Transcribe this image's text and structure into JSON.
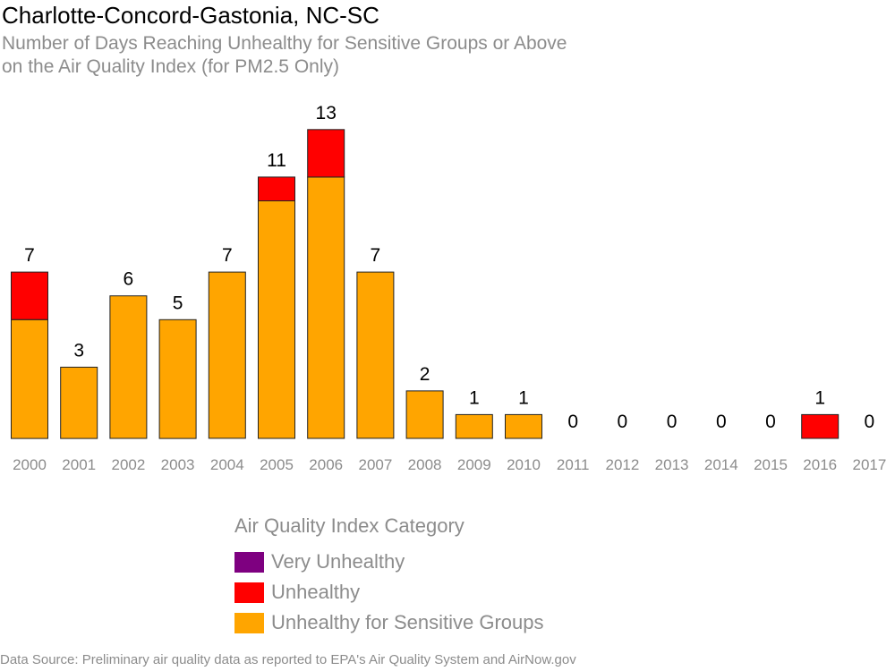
{
  "title": "Charlotte-Concord-Gastonia, NC-SC",
  "subtitle_line1": "Number of Days Reaching Unhealthy for Sensitive Groups or Above",
  "subtitle_line2": "on the Air Quality Index (for PM2.5 Only)",
  "legend": {
    "title": "Air Quality Index Category",
    "items": [
      {
        "label": "Very Unhealthy",
        "color": "#7e0080"
      },
      {
        "label": "Unhealthy",
        "color": "#ff0000"
      },
      {
        "label": "Unhealthy for Sensitive Groups",
        "color": "#ffa500"
      }
    ]
  },
  "source": "Data Source: Preliminary air quality data as reported to EPA's Air Quality System and AirNow.gov",
  "chart_data": {
    "type": "bar",
    "stacked": true,
    "categories": [
      "2000",
      "2001",
      "2002",
      "2003",
      "2004",
      "2005",
      "2006",
      "2007",
      "2008",
      "2009",
      "2010",
      "2011",
      "2012",
      "2013",
      "2014",
      "2015",
      "2016",
      "2017"
    ],
    "series": [
      {
        "name": "Unhealthy for Sensitive Groups",
        "color": "#ffa500",
        "values": [
          5,
          3,
          6,
          5,
          7,
          10,
          11,
          7,
          2,
          1,
          1,
          0,
          0,
          0,
          0,
          0,
          0,
          0
        ]
      },
      {
        "name": "Unhealthy",
        "color": "#ff0000",
        "values": [
          2,
          0,
          0,
          0,
          0,
          1,
          2,
          0,
          0,
          0,
          0,
          0,
          0,
          0,
          0,
          0,
          1,
          0
        ]
      },
      {
        "name": "Very Unhealthy",
        "color": "#7e0080",
        "values": [
          0,
          0,
          0,
          0,
          0,
          0,
          0,
          0,
          0,
          0,
          0,
          0,
          0,
          0,
          0,
          0,
          0,
          0
        ]
      }
    ],
    "totals": [
      7,
      3,
      6,
      5,
      7,
      11,
      13,
      7,
      2,
      1,
      1,
      0,
      0,
      0,
      0,
      0,
      1,
      0
    ],
    "ylim": [
      0,
      13
    ],
    "grid": false
  }
}
